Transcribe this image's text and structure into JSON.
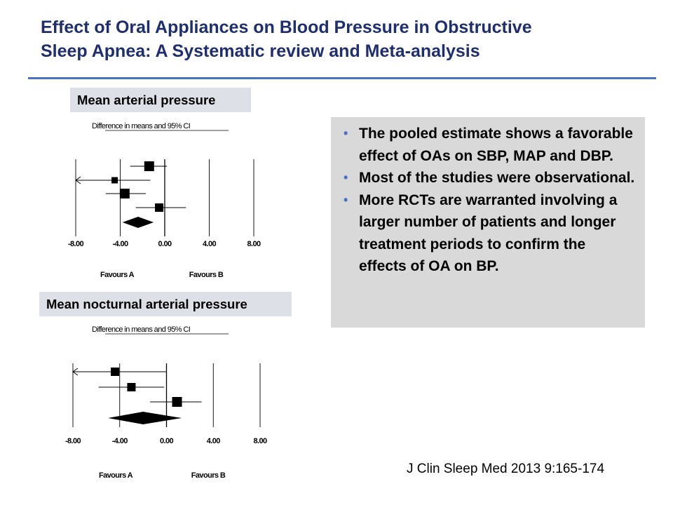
{
  "slide": {
    "title_line1": "Effect of Oral Appliances on Blood Pressure in Obstructive",
    "title_line2": "Sleep Apnea: A Systematic review and Meta-analysis",
    "citation": "J Clin Sleep Med 2013 9:165-174",
    "accent_color": "#4a72c4",
    "title_color": "#1f2f6e"
  },
  "bullets": [
    "The pooled estimate shows a favorable effect of OAs on SBP, MAP and DBP.",
    "Most of the studies were observational.",
    "More RCTs are warranted involving a larger number of patients and longer treatment periods to confirm the effects of OA on BP."
  ],
  "chart_data": [
    {
      "type": "forest",
      "panel_label": "Mean arterial pressure",
      "caption": "Difference in means and 95% CI",
      "xlim": [
        -8,
        8
      ],
      "xticks": [
        -8,
        -4,
        0,
        4,
        8
      ],
      "tick_labels": [
        "-8.00",
        "-4.00",
        "0.00",
        "4.00",
        "8.00"
      ],
      "favours_left": "Favours A",
      "favours_right": "Favours B",
      "studies": [
        {
          "mean": -1.4,
          "lo": -3.1,
          "hi": 0.2,
          "weight": "large"
        },
        {
          "mean": -4.5,
          "lo": -8.0,
          "hi": -1.3,
          "weight": "small",
          "arrow_left": true
        },
        {
          "mean": -3.6,
          "lo": -5.3,
          "hi": -1.7,
          "weight": "large"
        },
        {
          "mean": -0.5,
          "lo": -2.6,
          "hi": 1.9,
          "weight": "medium"
        }
      ],
      "pooled": {
        "mean": -2.4,
        "lo": -3.8,
        "hi": -1.0
      }
    },
    {
      "type": "forest",
      "panel_label": "Mean nocturnal arterial pressure",
      "caption": "Difference in means and 95% CI",
      "xlim": [
        -8,
        8
      ],
      "xticks": [
        -8,
        -4,
        0,
        4,
        8
      ],
      "tick_labels": [
        "-8.00",
        "-4.00",
        "0.00",
        "4.00",
        "8.00"
      ],
      "favours_left": "Favours A",
      "favours_right": "Favours B",
      "studies": [
        {
          "mean": -4.4,
          "lo": -8.0,
          "hi": 0.0,
          "weight": "medium",
          "arrow_left": true
        },
        {
          "mean": -3.0,
          "lo": -5.8,
          "hi": -0.2,
          "weight": "medium"
        },
        {
          "mean": 0.9,
          "lo": -1.4,
          "hi": 3.0,
          "weight": "large"
        }
      ],
      "pooled": {
        "mean": -2.0,
        "lo": -5.0,
        "hi": 1.3
      }
    }
  ]
}
